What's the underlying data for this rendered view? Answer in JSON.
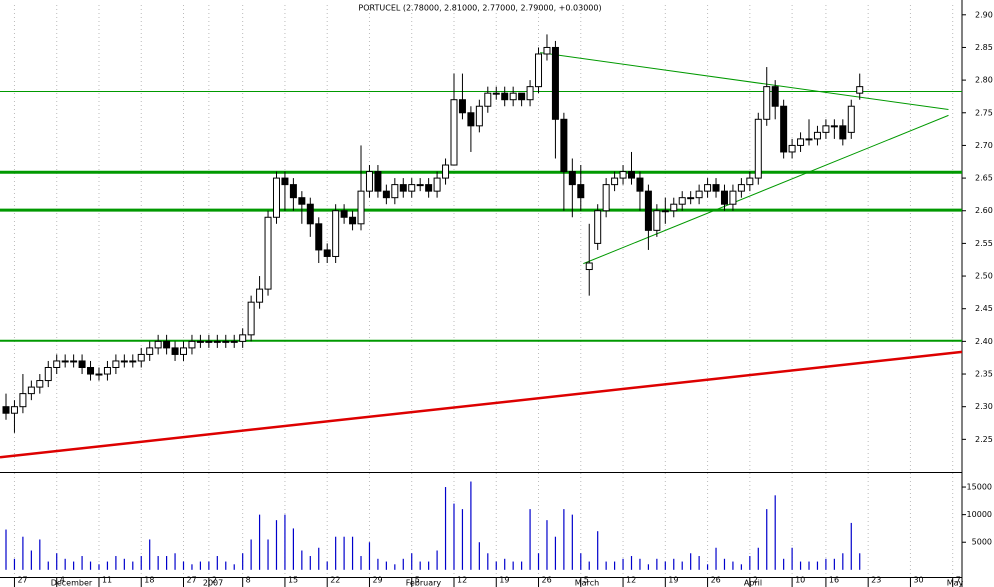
{
  "chart_data": {
    "type": "candlestick",
    "title": "PORTUCEL (2.78000, 2.81000, 2.77000, 2.79000, +0.03000)",
    "ohlc": {
      "open": [
        2.3,
        2.29,
        2.3,
        2.32,
        2.33,
        2.34,
        2.36,
        2.37,
        2.37,
        2.37,
        2.36,
        2.35,
        2.35,
        2.36,
        2.37,
        2.37,
        2.37,
        2.38,
        2.39,
        2.4,
        2.39,
        2.38,
        2.39,
        2.4,
        2.4,
        2.4,
        2.4,
        2.4,
        2.4,
        2.41,
        2.46,
        2.48,
        2.59,
        2.65,
        2.64,
        2.62,
        2.61,
        2.58,
        2.54,
        2.53,
        2.6,
        2.59,
        2.58,
        2.63,
        2.66,
        2.63,
        2.62,
        2.64,
        2.63,
        2.64,
        2.64,
        2.63,
        2.65,
        2.67,
        2.77,
        2.75,
        2.73,
        2.76,
        2.78,
        2.78,
        2.77,
        2.78,
        2.77,
        2.79,
        2.84,
        2.85,
        2.74,
        2.66,
        2.64,
        2.51,
        2.55,
        2.6,
        2.64,
        2.65,
        2.66,
        2.65,
        2.63,
        2.57,
        2.6,
        2.6,
        2.61,
        2.62,
        2.62,
        2.63,
        2.64,
        2.63,
        2.61,
        2.63,
        2.64,
        2.65,
        2.74,
        2.79,
        2.76,
        2.69,
        2.7,
        2.71,
        2.71,
        2.72,
        2.73,
        2.73,
        2.72,
        2.78
      ],
      "high": [
        2.32,
        2.31,
        2.35,
        2.34,
        2.35,
        2.37,
        2.38,
        2.38,
        2.38,
        2.38,
        2.37,
        2.36,
        2.37,
        2.38,
        2.38,
        2.38,
        2.39,
        2.4,
        2.41,
        2.41,
        2.4,
        2.4,
        2.41,
        2.41,
        2.41,
        2.41,
        2.41,
        2.41,
        2.42,
        2.47,
        2.5,
        2.6,
        2.66,
        2.66,
        2.65,
        2.63,
        2.62,
        2.59,
        2.55,
        2.61,
        2.61,
        2.6,
        2.7,
        2.67,
        2.67,
        2.64,
        2.65,
        2.65,
        2.65,
        2.65,
        2.65,
        2.66,
        2.68,
        2.81,
        2.81,
        2.76,
        2.77,
        2.79,
        2.79,
        2.79,
        2.79,
        2.78,
        2.8,
        2.85,
        2.87,
        2.86,
        2.75,
        2.68,
        2.67,
        2.58,
        2.61,
        2.65,
        2.66,
        2.67,
        2.69,
        2.66,
        2.64,
        2.61,
        2.62,
        2.62,
        2.63,
        2.63,
        2.64,
        2.65,
        2.65,
        2.64,
        2.64,
        2.65,
        2.66,
        2.75,
        2.82,
        2.8,
        2.77,
        2.71,
        2.72,
        2.74,
        2.73,
        2.74,
        2.74,
        2.74,
        2.77,
        2.81
      ],
      "low": [
        2.28,
        2.26,
        2.29,
        2.31,
        2.32,
        2.33,
        2.35,
        2.36,
        2.36,
        2.35,
        2.34,
        2.34,
        2.34,
        2.35,
        2.36,
        2.36,
        2.36,
        2.37,
        2.38,
        2.38,
        2.37,
        2.37,
        2.38,
        2.39,
        2.39,
        2.39,
        2.39,
        2.39,
        2.39,
        2.4,
        2.45,
        2.47,
        2.58,
        2.6,
        2.6,
        2.58,
        2.56,
        2.52,
        2.52,
        2.52,
        2.58,
        2.57,
        2.57,
        2.62,
        2.62,
        2.61,
        2.61,
        2.62,
        2.62,
        2.63,
        2.62,
        2.62,
        2.64,
        2.67,
        2.74,
        2.69,
        2.72,
        2.75,
        2.77,
        2.76,
        2.76,
        2.76,
        2.76,
        2.78,
        2.83,
        2.68,
        2.6,
        2.59,
        2.6,
        2.47,
        2.54,
        2.59,
        2.63,
        2.64,
        2.64,
        2.6,
        2.54,
        2.56,
        2.58,
        2.59,
        2.6,
        2.61,
        2.61,
        2.62,
        2.62,
        2.6,
        2.6,
        2.62,
        2.63,
        2.64,
        2.73,
        2.74,
        2.68,
        2.68,
        2.69,
        2.7,
        2.7,
        2.71,
        2.71,
        2.7,
        2.71,
        2.77
      ],
      "close": [
        2.29,
        2.3,
        2.32,
        2.33,
        2.34,
        2.36,
        2.37,
        2.37,
        2.37,
        2.36,
        2.35,
        2.35,
        2.36,
        2.37,
        2.37,
        2.37,
        2.38,
        2.39,
        2.4,
        2.39,
        2.38,
        2.39,
        2.4,
        2.4,
        2.4,
        2.4,
        2.4,
        2.4,
        2.41,
        2.46,
        2.48,
        2.59,
        2.65,
        2.64,
        2.62,
        2.61,
        2.58,
        2.54,
        2.53,
        2.6,
        2.59,
        2.58,
        2.63,
        2.66,
        2.63,
        2.62,
        2.64,
        2.63,
        2.64,
        2.64,
        2.63,
        2.65,
        2.67,
        2.77,
        2.75,
        2.73,
        2.76,
        2.78,
        2.78,
        2.77,
        2.78,
        2.77,
        2.79,
        2.84,
        2.85,
        2.74,
        2.66,
        2.64,
        2.62,
        2.52,
        2.6,
        2.64,
        2.65,
        2.66,
        2.65,
        2.63,
        2.57,
        2.6,
        2.6,
        2.61,
        2.62,
        2.62,
        2.63,
        2.64,
        2.63,
        2.61,
        2.63,
        2.64,
        2.65,
        2.74,
        2.79,
        2.76,
        2.69,
        2.7,
        2.71,
        2.71,
        2.72,
        2.73,
        2.73,
        2.71,
        2.76,
        2.79
      ]
    },
    "volume": {
      "color": "#0000cc",
      "values": [
        7300,
        2000,
        6000,
        3500,
        5500,
        1500,
        3000,
        2000,
        1500,
        2500,
        1500,
        1000,
        1500,
        2500,
        2000,
        1500,
        2500,
        5500,
        2500,
        2500,
        3000,
        1500,
        1000,
        1500,
        1500,
        2500,
        1500,
        1000,
        3000,
        5500,
        10000,
        5500,
        9000,
        10000,
        7500,
        3500,
        2500,
        4000,
        1500,
        6000,
        6000,
        6000,
        2500,
        5000,
        2000,
        1500,
        1000,
        2000,
        3000,
        1500,
        1500,
        3500,
        15000,
        12000,
        11000,
        16000,
        5000,
        3000,
        1500,
        2000,
        1500,
        1500,
        11000,
        3000,
        9000,
        6000,
        11000,
        10000,
        3000,
        1500,
        7000,
        1500,
        1500,
        2000,
        2500,
        2000,
        1000,
        2000,
        1500,
        2000,
        1500,
        3000,
        2500,
        1000,
        4000,
        2000,
        1500,
        1000,
        2500,
        4000,
        11000,
        13500,
        2000,
        4000,
        1500,
        1500,
        1500,
        2000,
        2000,
        3000,
        8500,
        3000
      ],
      "ylim": [
        -1300,
        17000
      ],
      "yticks": [
        5000,
        10000,
        15000
      ]
    },
    "xlim": [
      -0.71,
      113.1
    ],
    "ylim": [
      2.2,
      2.915
    ],
    "yticks": [
      {
        "value": 2.25,
        "label": "2.25"
      },
      {
        "value": 2.3,
        "label": "2.30"
      },
      {
        "value": 2.35,
        "label": "2.35"
      },
      {
        "value": 2.4,
        "label": "2.40"
      },
      {
        "value": 2.45,
        "label": "2.45"
      },
      {
        "value": 2.5,
        "label": "2.50"
      },
      {
        "value": 2.55,
        "label": "2.55"
      },
      {
        "value": 2.6,
        "label": "2.60"
      },
      {
        "value": 2.65,
        "label": "2.65"
      },
      {
        "value": 2.7,
        "label": "2.70"
      },
      {
        "value": 2.75,
        "label": "2.75"
      },
      {
        "value": 2.8,
        "label": "2.80"
      },
      {
        "value": 2.85,
        "label": "2.85"
      },
      {
        "value": 2.9,
        "label": "2.90"
      }
    ],
    "xticks": [
      {
        "value": 1,
        "label": "27"
      },
      {
        "value": 6,
        "label": "4"
      },
      {
        "value": 11,
        "label": "11"
      },
      {
        "value": 16,
        "label": "18"
      },
      {
        "value": 21,
        "label": "27"
      },
      {
        "value": 24,
        "label": "2"
      },
      {
        "value": 28,
        "label": "8"
      },
      {
        "value": 33,
        "label": "15"
      },
      {
        "value": 38,
        "label": "22"
      },
      {
        "value": 43,
        "label": "29"
      },
      {
        "value": 48,
        "label": "5"
      },
      {
        "value": 53,
        "label": "12"
      },
      {
        "value": 58,
        "label": "19"
      },
      {
        "value": 63,
        "label": "26"
      },
      {
        "value": 68,
        "label": "5"
      },
      {
        "value": 73,
        "label": "12"
      },
      {
        "value": 78,
        "label": "19"
      },
      {
        "value": 83,
        "label": "26"
      },
      {
        "value": 88,
        "label": "2"
      },
      {
        "value": 93,
        "label": "10"
      },
      {
        "value": 97,
        "label": "16"
      },
      {
        "value": 102,
        "label": "23"
      },
      {
        "value": 107,
        "label": "30"
      },
      {
        "value": 112,
        "label": "7"
      }
    ],
    "period_labels": [
      {
        "value": 6,
        "label": "December"
      },
      {
        "value": 24,
        "label": "2007"
      },
      {
        "value": 48,
        "label": "February"
      },
      {
        "value": 68,
        "label": "March"
      },
      {
        "value": 88,
        "label": "April"
      },
      {
        "value": 112,
        "label": "May"
      }
    ],
    "levels": [
      {
        "value": 2.7825,
        "color": "#009900",
        "width": 1
      },
      {
        "value": 2.659,
        "color": "#009900",
        "width": 3
      },
      {
        "value": 2.601,
        "color": "#009900",
        "width": 3
      },
      {
        "value": 2.401,
        "color": "#009900",
        "width": 2
      }
    ],
    "trendlines": [
      {
        "x": [
          -0.71,
          113.1
        ],
        "y": [
          2.2226,
          2.384
        ],
        "color": "#dd0000",
        "width": 2.5
      },
      {
        "x": [
          63.2,
          111.5
        ],
        "y": [
          2.842,
          2.755
        ],
        "color": "#009900",
        "width": 1
      },
      {
        "x": [
          68.3,
          111.5
        ],
        "y": [
          2.519,
          2.746
        ],
        "color": "#009900",
        "width": 1
      }
    ]
  }
}
